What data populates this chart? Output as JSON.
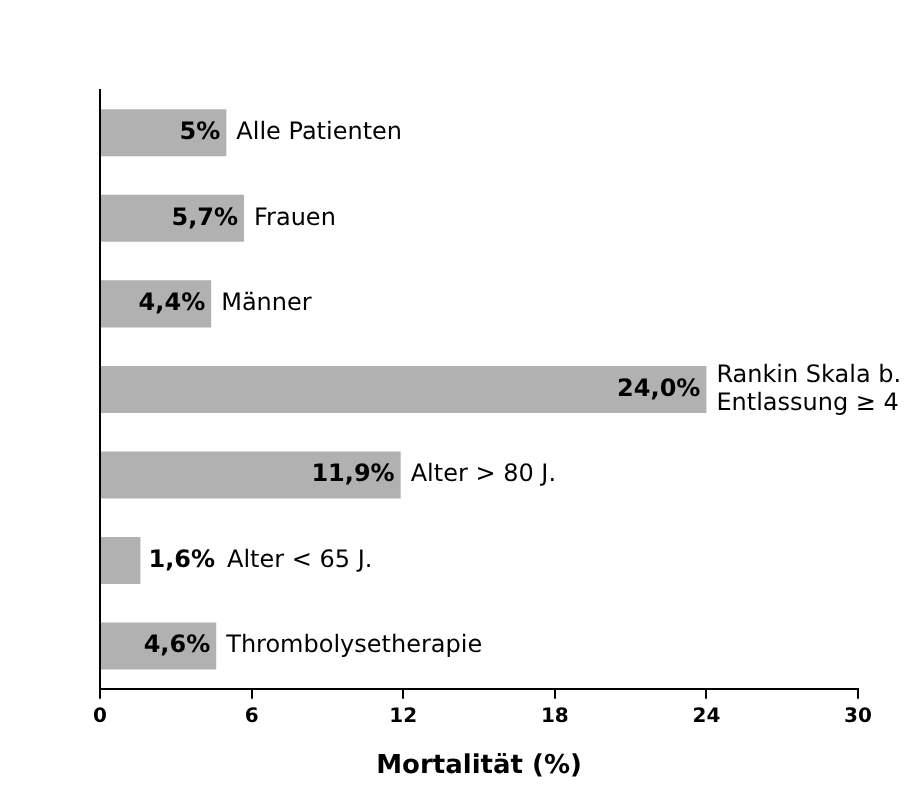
{
  "chart_data": {
    "type": "bar",
    "orientation": "horizontal",
    "categories": [
      "Alle Patienten",
      "Frauen",
      "Männer",
      "Rankin Skala b. Entlassung ≥ 4",
      "Alter > 80 J.",
      "Alter < 65 J.",
      "Thrombolysetherapie"
    ],
    "values": [
      5,
      5.7,
      4.4,
      24.0,
      11.9,
      1.6,
      4.6
    ],
    "value_labels": [
      "5%",
      "5,7%",
      "4,4%",
      "24,0%",
      "11,9%",
      "1,6%",
      "4,6%"
    ],
    "color": "#b1b1b1",
    "xlabel": "Mortalität (%)",
    "xlim": [
      0,
      30
    ],
    "xticks": [
      0,
      6,
      12,
      18,
      24,
      30
    ],
    "grid": false,
    "legend": false
  }
}
